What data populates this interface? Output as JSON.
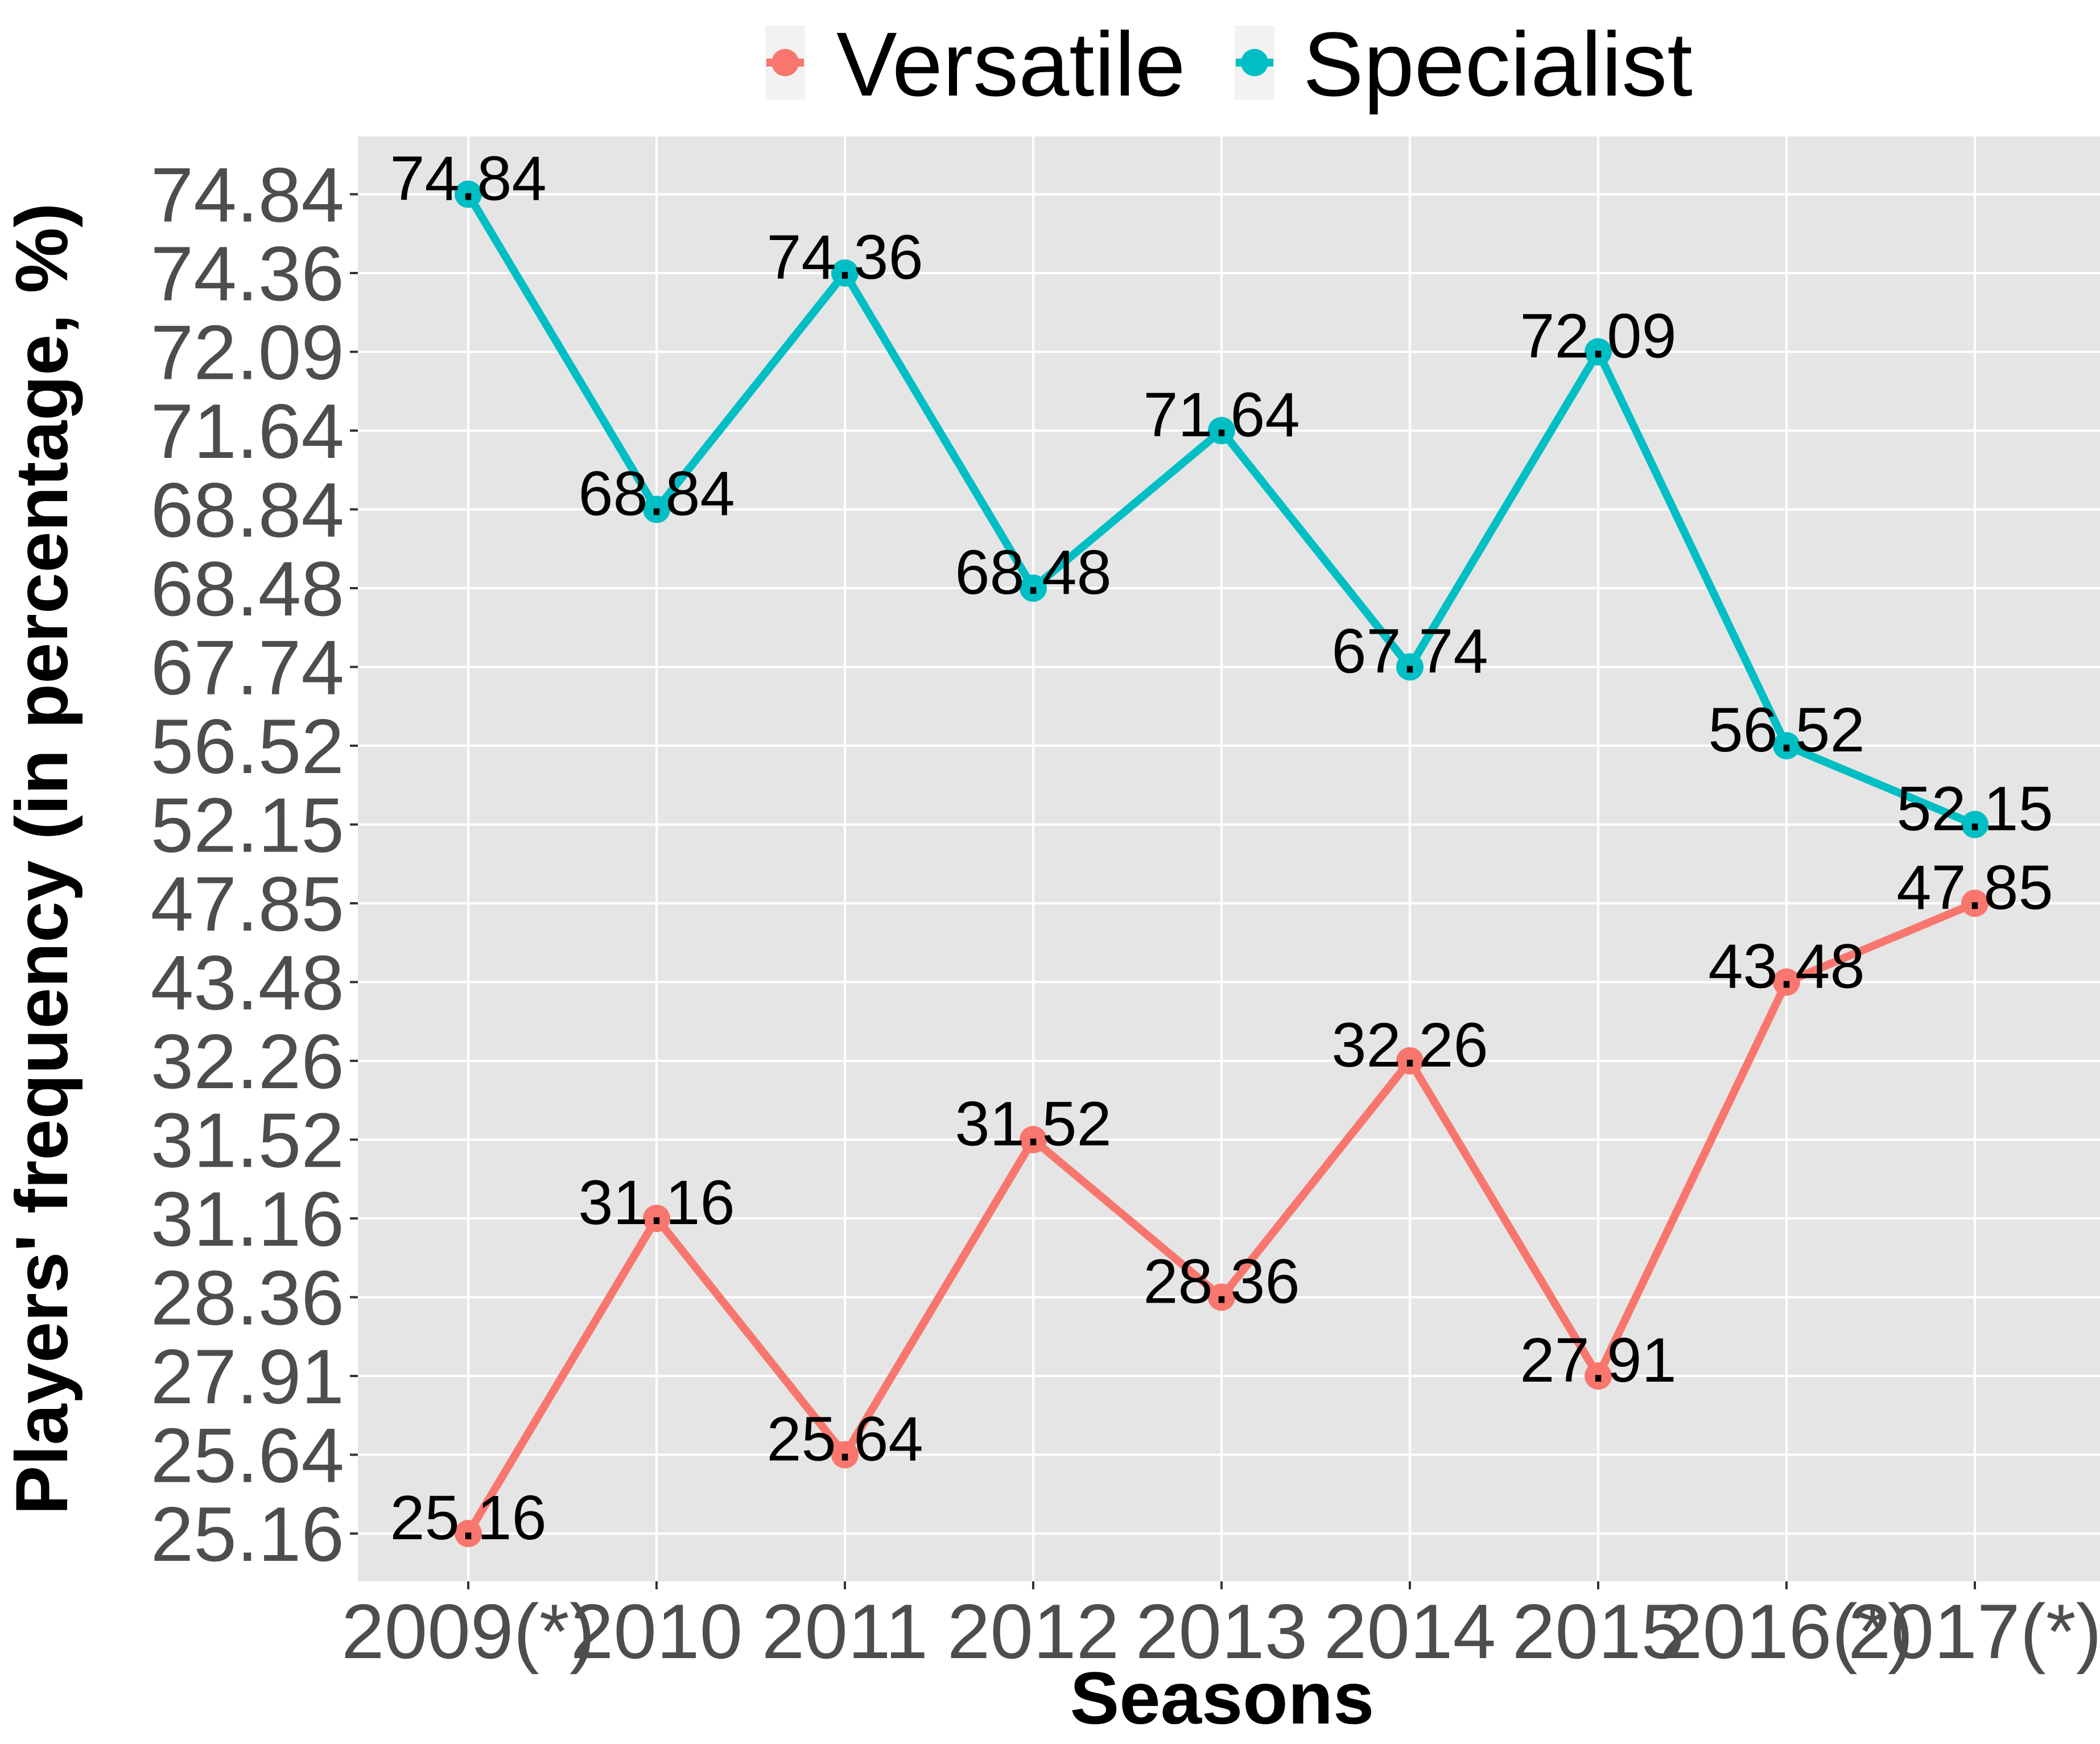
{
  "chart_data": {
    "type": "line",
    "xlabel": "Seasons",
    "ylabel": "Players' frequency (in percentage, %)",
    "categories": [
      "2009(*)",
      "2010",
      "2011",
      "2012",
      "2013",
      "2014",
      "2015",
      "2016(*)",
      "2017(*)"
    ],
    "y_ticks": [
      "25.16",
      "25.64",
      "27.91",
      "28.36",
      "31.16",
      "31.52",
      "32.26",
      "43.48",
      "47.85",
      "52.15",
      "56.52",
      "67.74",
      "68.48",
      "68.84",
      "71.64",
      "72.09",
      "74.36",
      "74.84"
    ],
    "y_scale": "categorical (each printed value is an evenly spaced tick)",
    "grid": true,
    "legend_position": "top",
    "series": [
      {
        "name": "Versatile",
        "color": "#F8766D",
        "values": [
          25.16,
          31.16,
          25.64,
          31.52,
          28.36,
          32.26,
          27.91,
          43.48,
          47.85
        ],
        "labels": [
          "25.16",
          "31.16",
          "25.64",
          "31.52",
          "28.36",
          "32.26",
          "27.91",
          "43.48",
          "47.85"
        ]
      },
      {
        "name": "Specialist",
        "color": "#00BFC4",
        "values": [
          74.84,
          68.84,
          74.36,
          68.48,
          71.64,
          67.74,
          72.09,
          56.52,
          52.15
        ],
        "labels": [
          "74.84",
          "68.84",
          "74.36",
          "68.48",
          "71.64",
          "67.74",
          "72.09",
          "56.52",
          "52.15"
        ]
      }
    ]
  },
  "colors": {
    "panel_background": "#E5E5E5",
    "grid_line": "#FFFFFF",
    "versatile": "#F8766D",
    "specialist": "#00BFC4"
  }
}
